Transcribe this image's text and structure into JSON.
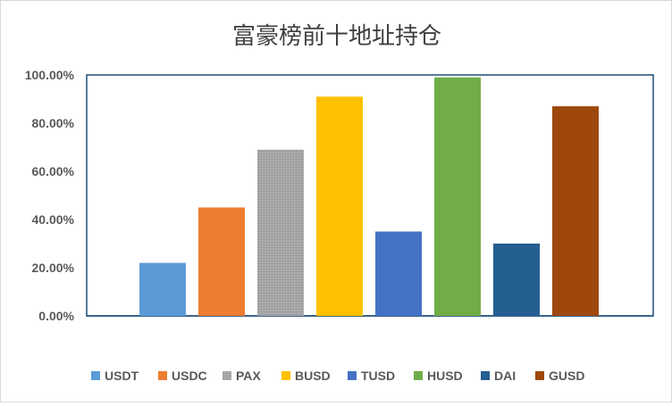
{
  "chart_data": {
    "type": "bar",
    "title": "富豪榜前十地址持仓",
    "xlabel": "",
    "ylabel": "",
    "ylim": [
      0,
      1
    ],
    "yticks": [
      0,
      0.2,
      0.4,
      0.6,
      0.8,
      1.0
    ],
    "ytick_labels": [
      "0.00%",
      "20.00%",
      "40.00%",
      "60.00%",
      "80.00%",
      "100.00%"
    ],
    "grid": false,
    "legend_position": "bottom",
    "categories": [
      "USDT",
      "USDC",
      "PAX",
      "BUSD",
      "TUSD",
      "HUSD",
      "DAI",
      "GUSD"
    ],
    "values": [
      0.22,
      0.45,
      0.69,
      0.91,
      0.35,
      0.99,
      0.3,
      0.87
    ],
    "colors": [
      "#5B9BD5",
      "#ED7D31",
      "#A5A5A5",
      "#FFC000",
      "#4472C4",
      "#70AD47",
      "#255E91",
      "#9E480E"
    ],
    "patterns": [
      "solid",
      "solid",
      "dotted",
      "solid",
      "solid",
      "solid",
      "solid",
      "solid"
    ],
    "plot_border_color": "#1F4E79"
  }
}
